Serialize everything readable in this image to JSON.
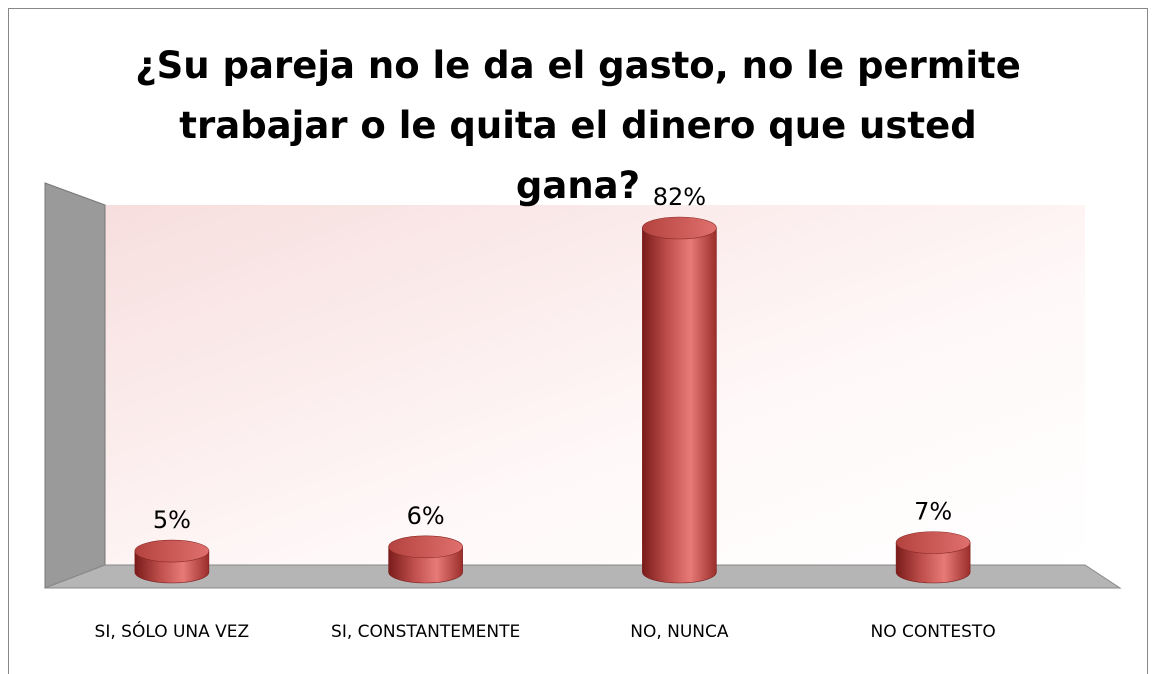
{
  "chart_data": {
    "type": "bar3d",
    "title": "¿Su pareja no le da el gasto, no le permite trabajar o le quita el dinero que usted gana?",
    "categories": [
      "SI, SÓLO UNA VEZ",
      "SI, CONSTANTEMENTE",
      "NO, NUNCA",
      "NO CONTESTO"
    ],
    "values": [
      5,
      6,
      82,
      7
    ],
    "value_labels": [
      "5%",
      "6%",
      "82%",
      "7%"
    ],
    "color": "#c0504d"
  }
}
